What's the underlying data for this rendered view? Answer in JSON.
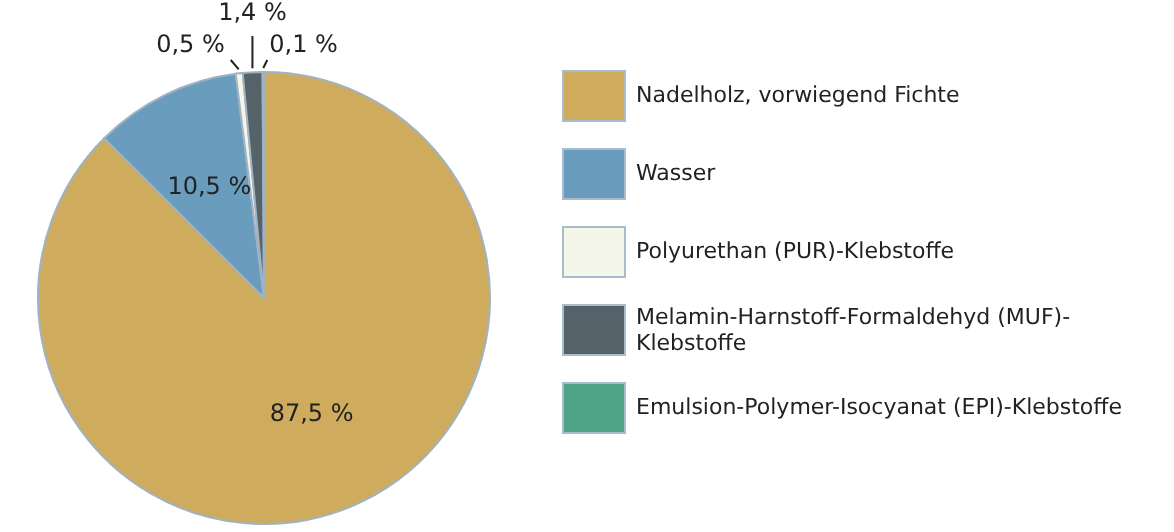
{
  "chart_data": {
    "type": "pie",
    "categories": [
      "Nadelholz, vorwiegend Fichte",
      "Wasser",
      "Polyurethan (PUR)-Klebstoffe",
      "Melamin-Harnstoff-Formaldehyd (MUF)-Klebstoffe",
      "Emulsion-Polymer-Isocyanat (EPI)-Klebstoffe"
    ],
    "values": [
      87.5,
      10.5,
      0.5,
      1.4,
      0.1
    ],
    "value_labels": [
      "87,5 %",
      "10,5 %",
      "0,5 %",
      "1,4 %",
      "0,1 %"
    ],
    "colors": [
      "#cfab5e",
      "#6a9cbd",
      "#f5f6ea",
      "#55626a",
      "#4fa386"
    ],
    "legend": "right"
  }
}
